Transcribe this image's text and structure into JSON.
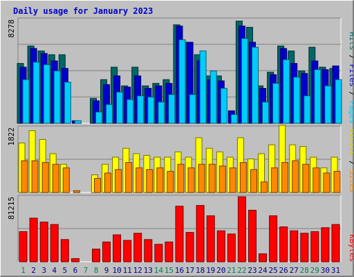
{
  "chart_data": {
    "type": "bar",
    "title": "Daily usage for January 2023",
    "days": [
      "1",
      "2",
      "3",
      "4",
      "5",
      "6",
      "7",
      "8",
      "9",
      "10",
      "11",
      "12",
      "13",
      "14",
      "15",
      "16",
      "17",
      "18",
      "19",
      "20",
      "21",
      "22",
      "23",
      "24",
      "25",
      "26",
      "27",
      "28",
      "29",
      "30",
      "31"
    ],
    "weekend_days": [
      "1",
      "7",
      "8",
      "14",
      "15",
      "21",
      "22",
      "28",
      "29"
    ],
    "panels": [
      {
        "max_label": "8278",
        "ymax": 8278,
        "right_labels": [
          {
            "text": "Hits",
            "color": "#006666"
          },
          {
            "text": " / ",
            "color": "#000000"
          },
          {
            "text": "Files",
            "color": "#0000cc"
          },
          {
            "text": " / ",
            "color": "#000000"
          },
          {
            "text": "Pages",
            "color": "#00ccff"
          }
        ],
        "series": [
          {
            "name": "Hits",
            "color": "#006666",
            "values": [
              4800,
              6200,
              5800,
              5500,
              5500,
              0,
              0,
              2000,
              3500,
              4500,
              3000,
              4500,
              3000,
              3200,
              3500,
              7900,
              6500,
              5500,
              3800,
              3800,
              0,
              8200,
              7700,
              3000,
              4100,
              6200,
              5800,
              4200,
              6100,
              4500,
              4400
            ]
          },
          {
            "name": "Files",
            "color": "#0000cc",
            "values": [
              4500,
              6000,
              5600,
              5000,
              4400,
              200,
              0,
              1800,
              3100,
              3800,
              2900,
              3800,
              2800,
              3000,
              3200,
              7800,
              6500,
              5000,
              3500,
              3400,
              1000,
              7800,
              6500,
              2800,
              3900,
              6000,
              4800,
              4000,
              5000,
              4300,
              4600
            ]
          },
          {
            "name": "Pages",
            "color": "#00ccff",
            "values": [
              3500,
              4900,
              4700,
              4200,
              3300,
              200,
              0,
              900,
              1500,
              2500,
              1900,
              2200,
              2100,
              1700,
              2300,
              6700,
              2300,
              5800,
              4200,
              2800,
              700,
              6800,
              6100,
              1700,
              3200,
              5100,
              3700,
              2200,
              4300,
              3000,
              3500
            ]
          }
        ]
      },
      {
        "max_label": "1822",
        "ymax": 1822,
        "right_labels": [
          {
            "text": "Visits",
            "color": "#cccc00"
          },
          {
            "text": " / ",
            "color": "#000000"
          },
          {
            "text": "Sites",
            "color": "#ff8800"
          }
        ],
        "series": [
          {
            "name": "Visits",
            "color": "#ffff00",
            "values": [
              1400,
              1750,
              1500,
              1100,
              800,
              0,
              0,
              500,
              800,
              1000,
              1250,
              1100,
              1050,
              1000,
              1000,
              1150,
              1000,
              1550,
              1250,
              1150,
              1000,
              1550,
              950,
              1100,
              1350,
              1900,
              1350,
              1300,
              1000,
              700,
              1000
            ]
          },
          {
            "name": "Sites",
            "color": "#ff8800",
            "values": [
              900,
              900,
              850,
              800,
              700,
              50,
              0,
              400,
              550,
              650,
              850,
              700,
              650,
              700,
              600,
              800,
              700,
              800,
              800,
              750,
              700,
              850,
              650,
              300,
              700,
              850,
              900,
              800,
              700,
              550,
              600
            ]
          }
        ]
      },
      {
        "max_label": "81215",
        "ymax": 81215,
        "right_labels": [
          {
            "text": "KBytes",
            "color": "#ff0000"
          }
        ],
        "series": [
          {
            "name": "KBytes",
            "color": "#ff0000",
            "values": [
              38000,
              55000,
              50000,
              47000,
              28000,
              4000,
              0,
              16000,
              25000,
              34000,
              27000,
              36000,
              28000,
              22000,
              25000,
              70000,
              37000,
              71000,
              58000,
              39000,
              35000,
              82000,
              65000,
              10000,
              58000,
              44000,
              39000,
              36000,
              38000,
              43000,
              47000
            ]
          }
        ]
      }
    ]
  }
}
